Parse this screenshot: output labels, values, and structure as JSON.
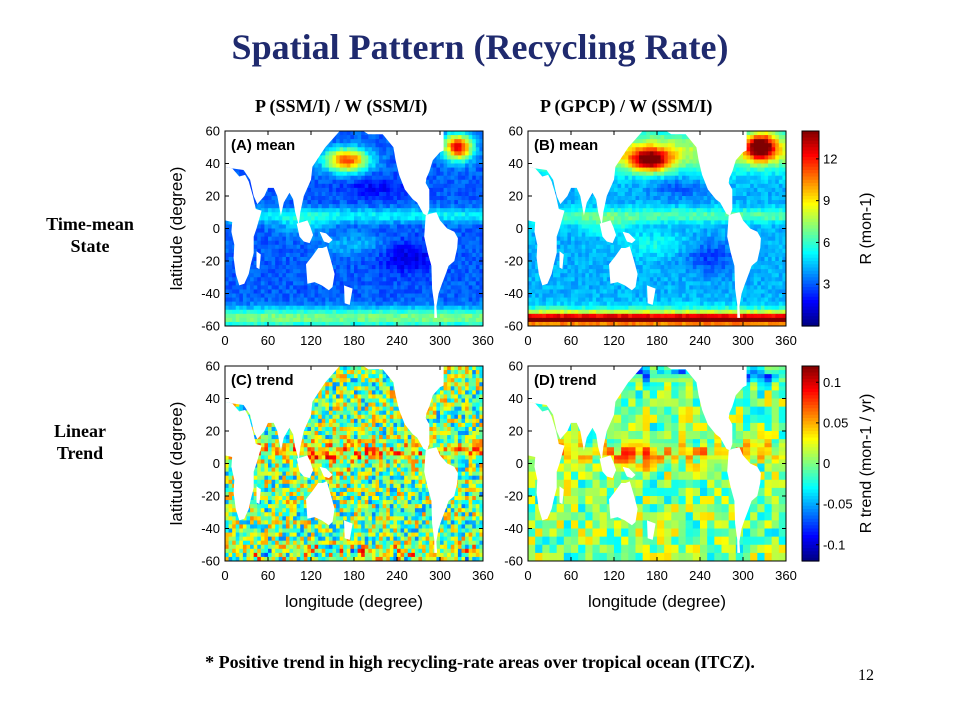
{
  "title": "Spatial Pattern (Recycling Rate)",
  "column_headers": [
    "P (SSM/I)  / W (SSM/I)",
    "P (GPCP)  / W (SSM/I)"
  ],
  "row_labels": [
    {
      "line1": "Time-mean",
      "line2": "State"
    },
    {
      "line1": "Linear",
      "line2": "Trend"
    }
  ],
  "footnote": "* Positive trend in high recycling-rate areas over tropical ocean (ITCZ).",
  "page_number": "12",
  "colors": {
    "title": "#1f2a6e",
    "land": "#ffffff",
    "colormap": [
      "#00007f",
      "#0000ff",
      "#007fff",
      "#00ffff",
      "#7fff7f",
      "#ffff00",
      "#ff7f00",
      "#ff0000",
      "#7f0000"
    ]
  },
  "chart_data": [
    {
      "type": "heatmap",
      "panel": "(A) mean",
      "xlabel": "",
      "ylabel": "latitude (degree)",
      "xlim": [
        0,
        360
      ],
      "ylim": [
        -60,
        60
      ],
      "xticks": [
        0,
        60,
        120,
        180,
        240,
        300,
        360
      ],
      "yticks": [
        -60,
        -40,
        -20,
        0,
        20,
        40,
        60
      ],
      "colorbar": {
        "label": "R (mon-1)",
        "ticks": [
          3,
          6,
          9,
          12
        ],
        "range": [
          0,
          14
        ]
      }
    },
    {
      "type": "heatmap",
      "panel": "(B) mean",
      "xlabel": "",
      "ylabel": "",
      "xlim": [
        0,
        360
      ],
      "ylim": [
        -60,
        60
      ],
      "xticks": [
        0,
        60,
        120,
        180,
        240,
        300,
        360
      ],
      "yticks": [
        -60,
        -40,
        -20,
        0,
        20,
        40,
        60
      ],
      "colorbar": {
        "label": "R (mon-1)",
        "ticks": [
          3,
          6,
          9,
          12
        ],
        "range": [
          0,
          14
        ]
      }
    },
    {
      "type": "heatmap",
      "panel": "(C) trend",
      "xlabel": "longitude (degree)",
      "ylabel": "latitude (degree)",
      "xlim": [
        0,
        360
      ],
      "ylim": [
        -60,
        60
      ],
      "xticks": [
        0,
        60,
        120,
        180,
        240,
        300,
        360
      ],
      "yticks": [
        -60,
        -40,
        -20,
        0,
        20,
        40,
        60
      ],
      "colorbar": {
        "label": "R trend (mon-1 / yr)",
        "ticks": [
          -0.1,
          -0.05,
          0,
          0.05,
          0.1
        ],
        "range": [
          -0.12,
          0.12
        ]
      }
    },
    {
      "type": "heatmap",
      "panel": "(D) trend",
      "xlabel": "longitude (degree)",
      "ylabel": "",
      "xlim": [
        0,
        360
      ],
      "ylim": [
        -60,
        60
      ],
      "xticks": [
        0,
        60,
        120,
        180,
        240,
        300,
        360
      ],
      "yticks": [
        -60,
        -40,
        -20,
        0,
        20,
        40,
        60
      ],
      "colorbar": {
        "label": "R trend (mon-1 / yr)",
        "ticks": [
          -0.1,
          -0.05,
          0,
          0.05,
          0.1
        ],
        "range": [
          -0.12,
          0.12
        ]
      }
    }
  ]
}
